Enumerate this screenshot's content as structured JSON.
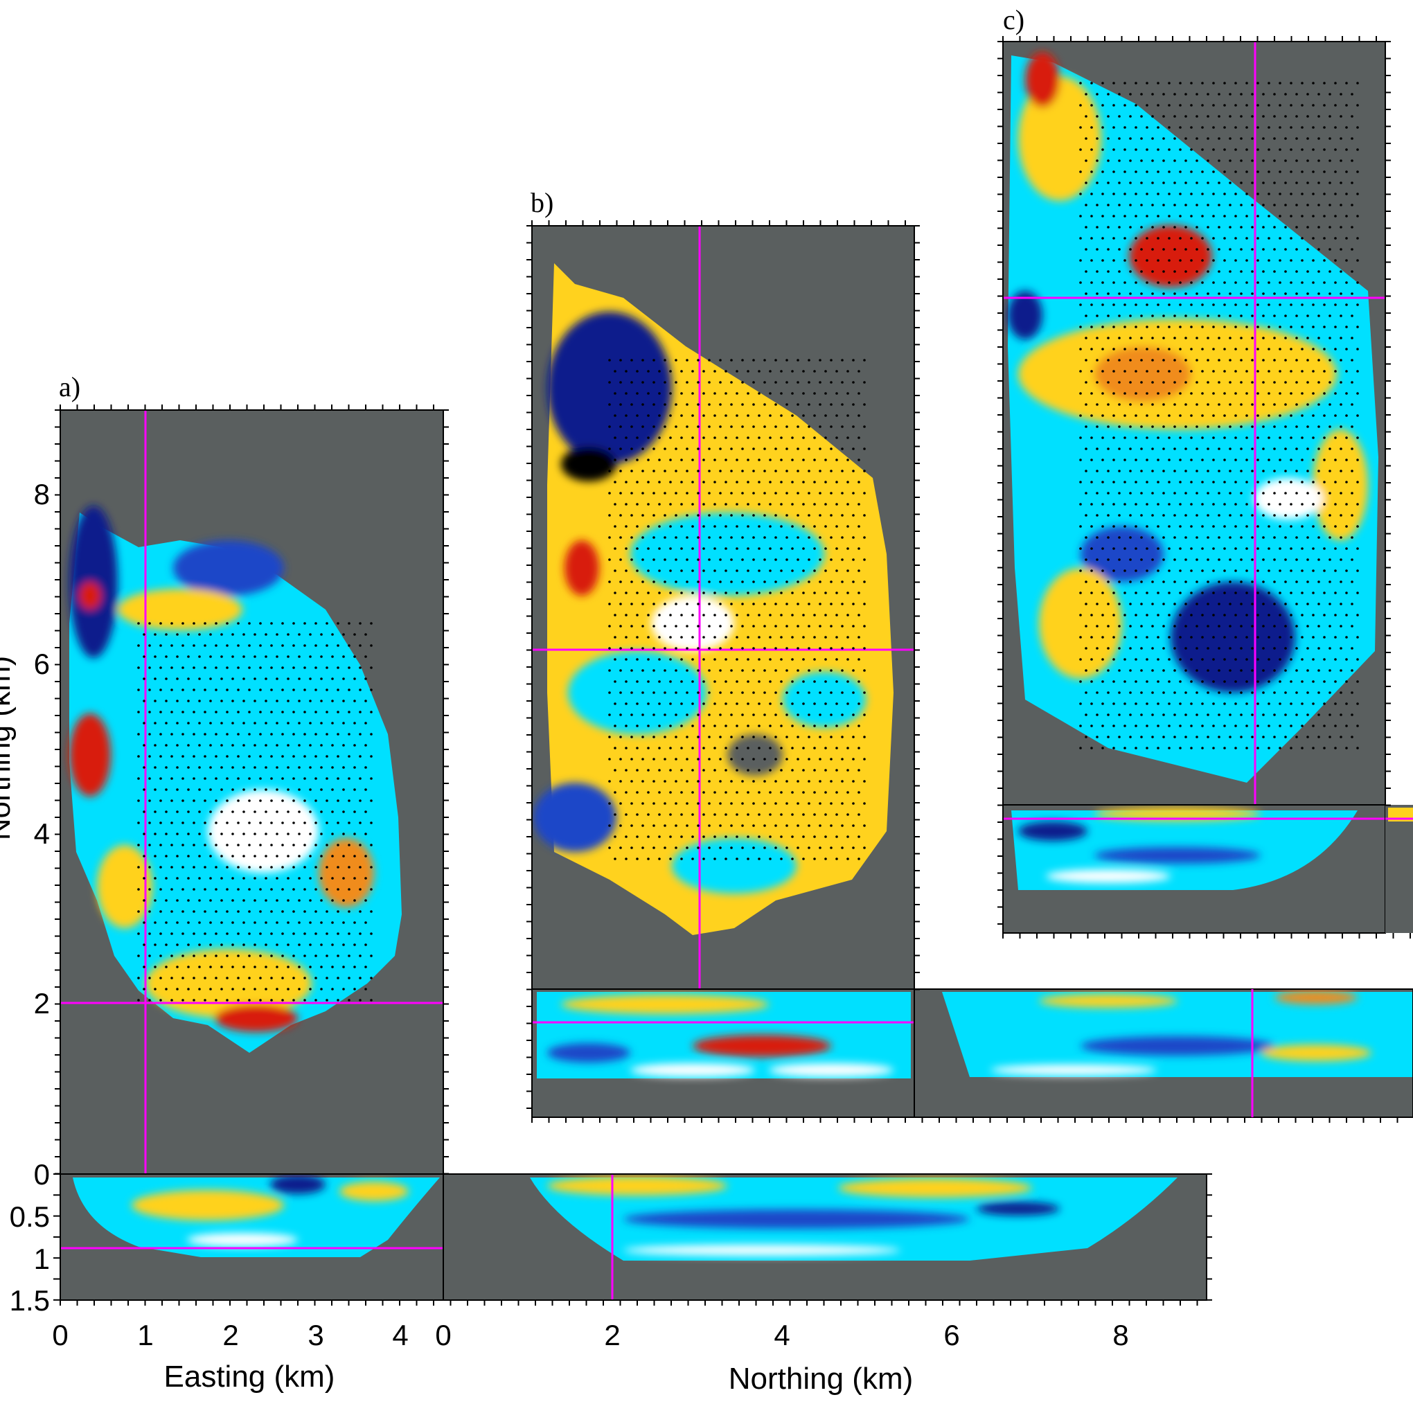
{
  "colors": {
    "background_gray": "#5a5f5f",
    "crosshair": "#ff00ff",
    "points": "#000000",
    "anomaly_blue": "#00e0ff",
    "anomaly_dark_blue": "#0a1e8c",
    "anomaly_yellow": "#ffd21e",
    "anomaly_red": "#d81e0a",
    "anomaly_white": "#ffffff"
  },
  "chart_data": [
    {
      "panel": "a)",
      "type": "heatmap",
      "view": "map",
      "xlabel": "Easting (km)",
      "ylabel": "Northing (km)",
      "xlim": [
        0,
        4.5
      ],
      "ylim": [
        0,
        9
      ],
      "xticks": [
        "0",
        "1",
        "2",
        "3",
        "4"
      ],
      "yticks": [
        "2",
        "4",
        "6",
        "8"
      ],
      "crosshair": {
        "easting": 1,
        "northing": 2
      },
      "depth_sections": {
        "depth_label_ticks": [
          "0",
          "0.5",
          "1",
          "1.5"
        ],
        "depth_range_km": [
          0,
          1.5
        ],
        "crosshair_depth_km": 0.9,
        "northing_ticks": [
          "0",
          "2",
          "4",
          "6",
          "8"
        ],
        "northing_axis_label": "Northing (km)"
      }
    },
    {
      "panel": "b)",
      "type": "heatmap",
      "view": "map",
      "crosshair": {
        "easting": 2,
        "northing": 4
      },
      "crosshair_depth_km": 0.4
    },
    {
      "panel": "c)",
      "type": "heatmap",
      "view": "map",
      "crosshair": {
        "easting": 3,
        "northing": 6
      },
      "crosshair_depth_km": 0.1
    }
  ]
}
